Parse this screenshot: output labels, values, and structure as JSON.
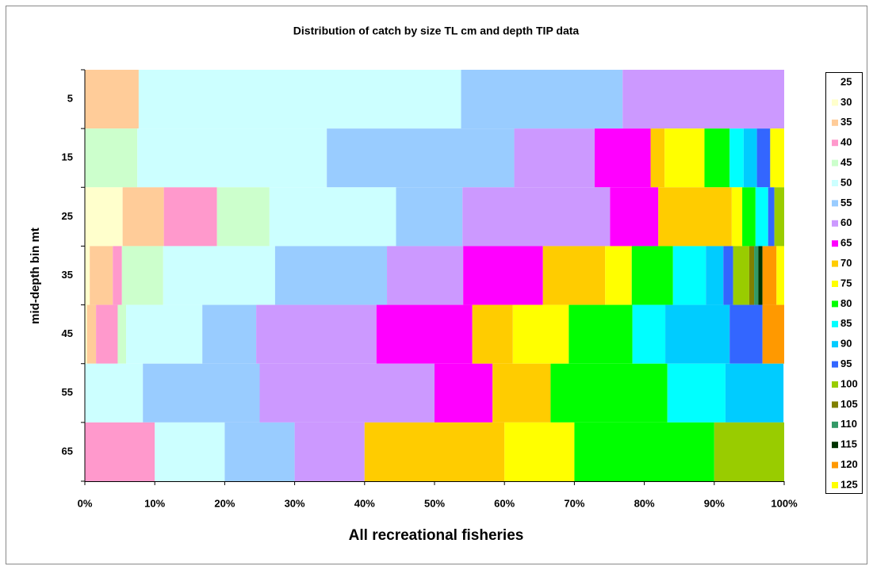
{
  "chart_data": {
    "type": "stacked-hbar",
    "title": "Distribution of catch by size TL cm and depth TIP data",
    "x_label": "All recreational fisheries",
    "y_label": "mid-depth bin mt",
    "categories": [
      "5",
      "15",
      "25",
      "35",
      "45",
      "55",
      "65"
    ],
    "xlim": [
      0,
      100
    ],
    "xticks": [
      {
        "value": 0,
        "label": "0%"
      },
      {
        "value": 10,
        "label": "10%"
      },
      {
        "value": 20,
        "label": "20%"
      },
      {
        "value": 30,
        "label": "30%"
      },
      {
        "value": 40,
        "label": "40%"
      },
      {
        "value": 50,
        "label": "50%"
      },
      {
        "value": 60,
        "label": "60%"
      },
      {
        "value": 70,
        "label": "70%"
      },
      {
        "value": 80,
        "label": "80%"
      },
      {
        "value": 90,
        "label": "90%"
      },
      {
        "value": 100,
        "label": "100%"
      }
    ],
    "legend": "right",
    "series": [
      {
        "name": "25",
        "color": "#ffffff",
        "values": [
          0,
          0,
          0,
          0,
          0,
          0,
          0
        ]
      },
      {
        "name": "30",
        "color": "#ffffcc",
        "values": [
          0,
          0,
          5.4,
          0.7,
          0.3,
          0,
          0
        ]
      },
      {
        "name": "35",
        "color": "#ffcc99",
        "values": [
          7.7,
          0,
          5.9,
          3.3,
          1.3,
          0,
          0
        ]
      },
      {
        "name": "40",
        "color": "#ff99cc",
        "values": [
          0,
          0,
          7.6,
          1.3,
          3.1,
          0,
          10
        ]
      },
      {
        "name": "45",
        "color": "#ccffcc",
        "values": [
          0,
          7.5,
          7.5,
          5.9,
          1.2,
          0,
          0
        ]
      },
      {
        "name": "50",
        "color": "#ccffff",
        "values": [
          46.1,
          27.1,
          18.1,
          16,
          10.9,
          8.3,
          10
        ]
      },
      {
        "name": "55",
        "color": "#99ccff",
        "values": [
          23.1,
          26.8,
          9.5,
          16,
          7.7,
          16.7,
          10
        ]
      },
      {
        "name": "60",
        "color": "#cc99ff",
        "values": [
          23.1,
          11.5,
          21.1,
          10.9,
          17.2,
          25,
          10
        ]
      },
      {
        "name": "65",
        "color": "#ff00ff",
        "values": [
          0,
          8,
          6.9,
          11.4,
          13.7,
          8.3,
          0
        ]
      },
      {
        "name": "70",
        "color": "#ffcc00",
        "values": [
          0,
          2,
          10.5,
          8.9,
          5.8,
          8.3,
          20
        ]
      },
      {
        "name": "75",
        "color": "#ffff00",
        "values": [
          0,
          5.7,
          1.5,
          3.8,
          8,
          0,
          10
        ]
      },
      {
        "name": "80",
        "color": "#00ff00",
        "values": [
          0,
          3.6,
          1.9,
          5.9,
          9.1,
          16.7,
          20
        ]
      },
      {
        "name": "85",
        "color": "#00ffff",
        "values": [
          0,
          2,
          1.8,
          4.7,
          4.7,
          8.3,
          0
        ]
      },
      {
        "name": "90",
        "color": "#00ccff",
        "values": [
          0,
          1.9,
          0,
          2.5,
          9.2,
          8.3,
          0
        ]
      },
      {
        "name": "95",
        "color": "#3366ff",
        "values": [
          0,
          1.9,
          0.9,
          1.4,
          4.7,
          0,
          0
        ]
      },
      {
        "name": "100",
        "color": "#99cc00",
        "values": [
          0,
          0,
          1.4,
          2.3,
          0,
          0,
          10
        ]
      },
      {
        "name": "105",
        "color": "#808000",
        "values": [
          0,
          0,
          0,
          0.7,
          0,
          0,
          0
        ]
      },
      {
        "name": "110",
        "color": "#339966",
        "values": [
          0,
          0,
          0,
          0.6,
          0,
          0,
          0
        ]
      },
      {
        "name": "115",
        "color": "#003300",
        "values": [
          0,
          0,
          0,
          0.6,
          0,
          0,
          0
        ]
      },
      {
        "name": "120",
        "color": "#ff9900",
        "values": [
          0,
          0,
          0,
          2,
          3.1,
          0,
          0
        ]
      },
      {
        "name": "125",
        "color": "#ffff00",
        "values": [
          0,
          2,
          0,
          1.1,
          0,
          0,
          0
        ]
      }
    ]
  }
}
